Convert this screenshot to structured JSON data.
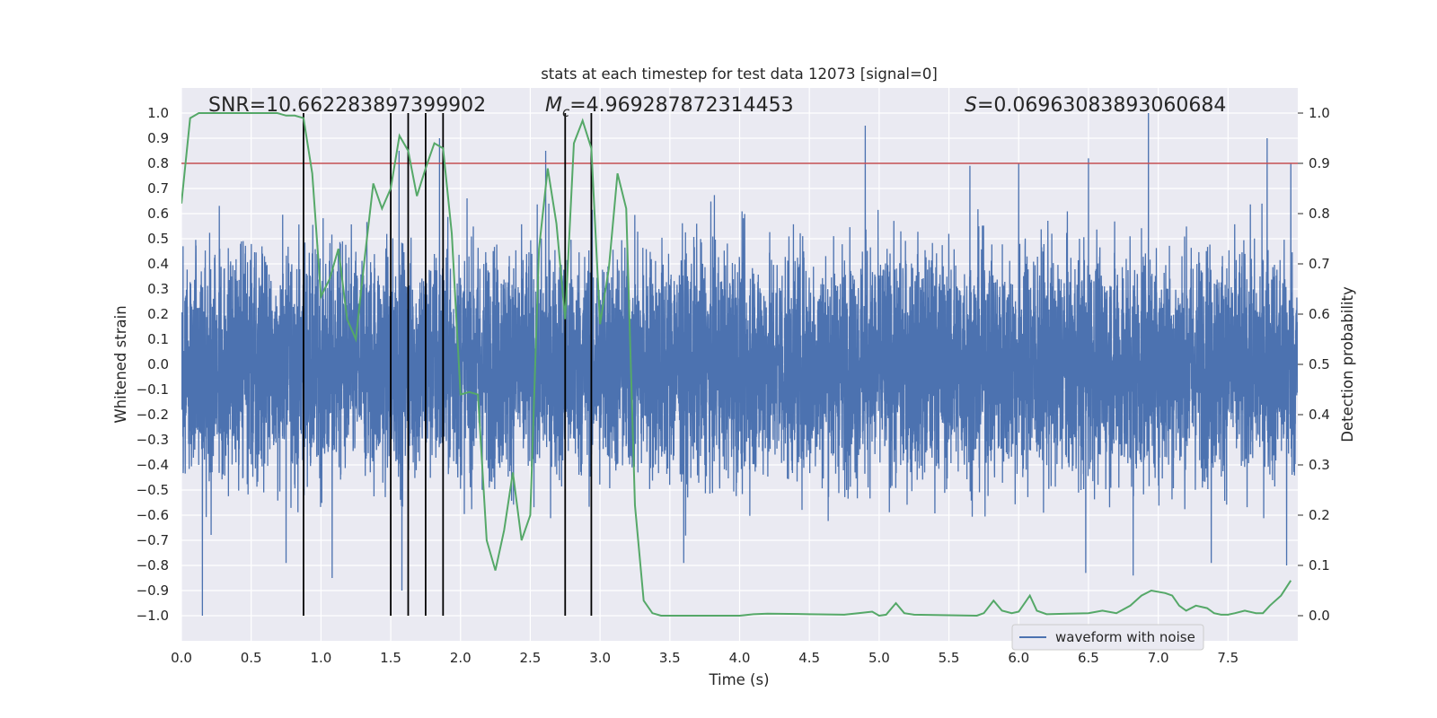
{
  "chart_data": {
    "type": "line",
    "title": "stats at each timestep for test data 12073 [signal=0]",
    "xlabel": "Time (s)",
    "ylabel": "Whitened strain",
    "y2label": "Detection probability",
    "xlim": [
      0.0,
      8.0
    ],
    "ylim": [
      -1.1,
      1.1
    ],
    "y2lim": [
      -0.05,
      1.05
    ],
    "x_ticks": [
      0.0,
      0.5,
      1.0,
      1.5,
      2.0,
      2.5,
      3.0,
      3.5,
      4.0,
      4.5,
      5.0,
      5.5,
      6.0,
      6.5,
      7.0,
      7.5
    ],
    "x_tick_labels": [
      "0.0",
      "0.5",
      "1.0",
      "1.5",
      "2.0",
      "2.5",
      "3.0",
      "3.5",
      "4.0",
      "4.5",
      "5.0",
      "5.5",
      "6.0",
      "6.5",
      "7.0",
      "7.5"
    ],
    "y_ticks": [
      -1.0,
      -0.9,
      -0.8,
      -0.7,
      -0.6,
      -0.5,
      -0.4,
      -0.3,
      -0.2,
      -0.1,
      0.0,
      0.1,
      0.2,
      0.3,
      0.4,
      0.5,
      0.6,
      0.7,
      0.8,
      0.9,
      1.0
    ],
    "y_tick_labels": [
      "−1.0",
      "−0.9",
      "−0.8",
      "−0.7",
      "−0.6",
      "−0.5",
      "−0.4",
      "−0.3",
      "−0.2",
      "−0.1",
      "0.0",
      "0.1",
      "0.2",
      "0.3",
      "0.4",
      "0.5",
      "0.6",
      "0.7",
      "0.8",
      "0.9",
      "1.0"
    ],
    "y2_ticks": [
      0.0,
      0.1,
      0.2,
      0.3,
      0.4,
      0.5,
      0.6,
      0.7,
      0.8,
      0.9,
      1.0
    ],
    "y2_tick_labels": [
      "0.0",
      "0.1",
      "0.2",
      "0.3",
      "0.4",
      "0.5",
      "0.6",
      "0.7",
      "0.8",
      "0.9",
      "1.0"
    ],
    "grid": true,
    "annotations": {
      "snr": "SNR=10.662283897399902",
      "mc_symbol": "M",
      "mc_sub": "c",
      "mc_value": "=4.969287872314453",
      "s_symbol": "S",
      "s_value": "=0.06963083893060684"
    },
    "legend": {
      "label": "waveform with noise",
      "position": "lower-right"
    },
    "threshold_line": {
      "axis": "y2",
      "value": 0.9,
      "color": "#c44e52"
    },
    "vertical_markers": [
      0.875,
      1.5,
      1.625,
      1.75,
      1.875,
      2.75,
      2.9375
    ],
    "waveform": {
      "name": "waveform with noise",
      "color": "#4c72b0",
      "n_samples": 8192,
      "typical_envelope": 0.45,
      "peaks_positive": [
        {
          "x": 4.9,
          "y": 0.95
        },
        {
          "x": 6.93,
          "y": 1.0
        },
        {
          "x": 7.78,
          "y": 0.9
        },
        {
          "x": 1.85,
          "y": 0.9
        },
        {
          "x": 2.61,
          "y": 0.85
        },
        {
          "x": 1.56,
          "y": 0.85
        },
        {
          "x": 6.5,
          "y": 0.82
        },
        {
          "x": 6.0,
          "y": 0.8
        },
        {
          "x": 5.65,
          "y": 0.79
        },
        {
          "x": 7.95,
          "y": 0.8
        }
      ],
      "peaks_negative": [
        {
          "x": 0.15,
          "y": -1.0
        },
        {
          "x": 1.58,
          "y": -0.9
        },
        {
          "x": 1.08,
          "y": -0.85
        },
        {
          "x": 6.82,
          "y": -0.84
        },
        {
          "x": 6.48,
          "y": -0.83
        },
        {
          "x": 0.75,
          "y": -0.79
        },
        {
          "x": 7.92,
          "y": -0.8
        },
        {
          "x": 3.6,
          "y": -0.79
        },
        {
          "x": 7.38,
          "y": -0.79
        }
      ]
    },
    "series": [
      {
        "name": "Detection probability",
        "axis": "y2",
        "color": "#55a868",
        "x": [
          0.0,
          0.0625,
          0.125,
          0.1875,
          0.25,
          0.3125,
          0.375,
          0.4375,
          0.5,
          0.5625,
          0.625,
          0.6875,
          0.75,
          0.8125,
          0.875,
          0.9375,
          1.0,
          1.0625,
          1.125,
          1.1875,
          1.25,
          1.3125,
          1.375,
          1.4375,
          1.5,
          1.5625,
          1.625,
          1.6875,
          1.75,
          1.8125,
          1.875,
          1.9375,
          2.0,
          2.0625,
          2.125,
          2.1875,
          2.25,
          2.3125,
          2.375,
          2.4375,
          2.5,
          2.5625,
          2.625,
          2.6875,
          2.75,
          2.8125,
          2.875,
          2.9375,
          3.0,
          3.0625,
          3.125,
          3.1875,
          3.25,
          3.3125,
          3.375,
          3.4375,
          3.5,
          3.6,
          3.8,
          4.0,
          4.1,
          4.2,
          4.5,
          4.75,
          4.85,
          4.95,
          5.0,
          5.05,
          5.12,
          5.18,
          5.25,
          5.5,
          5.7,
          5.75,
          5.82,
          5.88,
          5.95,
          6.0,
          6.08,
          6.13,
          6.2,
          6.35,
          6.5,
          6.6,
          6.7,
          6.8,
          6.88,
          6.95,
          7.05,
          7.1,
          7.15,
          7.2,
          7.27,
          7.35,
          7.4,
          7.45,
          7.5,
          7.55,
          7.62,
          7.7,
          7.75,
          7.8,
          7.88,
          7.95
        ],
        "values": [
          0.82,
          0.99,
          1.0,
          1.0,
          1.0,
          1.0,
          1.0,
          1.0,
          1.0,
          1.0,
          1.0,
          1.0,
          0.995,
          0.995,
          0.99,
          0.88,
          0.635,
          0.67,
          0.73,
          0.59,
          0.55,
          0.71,
          0.86,
          0.81,
          0.85,
          0.955,
          0.925,
          0.835,
          0.89,
          0.94,
          0.93,
          0.76,
          0.44,
          0.445,
          0.44,
          0.15,
          0.09,
          0.17,
          0.285,
          0.15,
          0.2,
          0.73,
          0.89,
          0.78,
          0.59,
          0.94,
          0.985,
          0.93,
          0.58,
          0.69,
          0.88,
          0.81,
          0.22,
          0.03,
          0.005,
          0.0,
          0.0,
          0.0,
          0.0,
          0.0,
          0.003,
          0.004,
          0.003,
          0.002,
          0.005,
          0.008,
          0.0,
          0.002,
          0.025,
          0.005,
          0.002,
          0.001,
          0.0,
          0.005,
          0.03,
          0.01,
          0.005,
          0.008,
          0.04,
          0.01,
          0.003,
          0.004,
          0.005,
          0.01,
          0.005,
          0.02,
          0.04,
          0.05,
          0.045,
          0.04,
          0.02,
          0.01,
          0.02,
          0.015,
          0.005,
          0.002,
          0.002,
          0.005,
          0.01,
          0.005,
          0.005,
          0.02,
          0.04,
          0.07
        ]
      }
    ]
  }
}
